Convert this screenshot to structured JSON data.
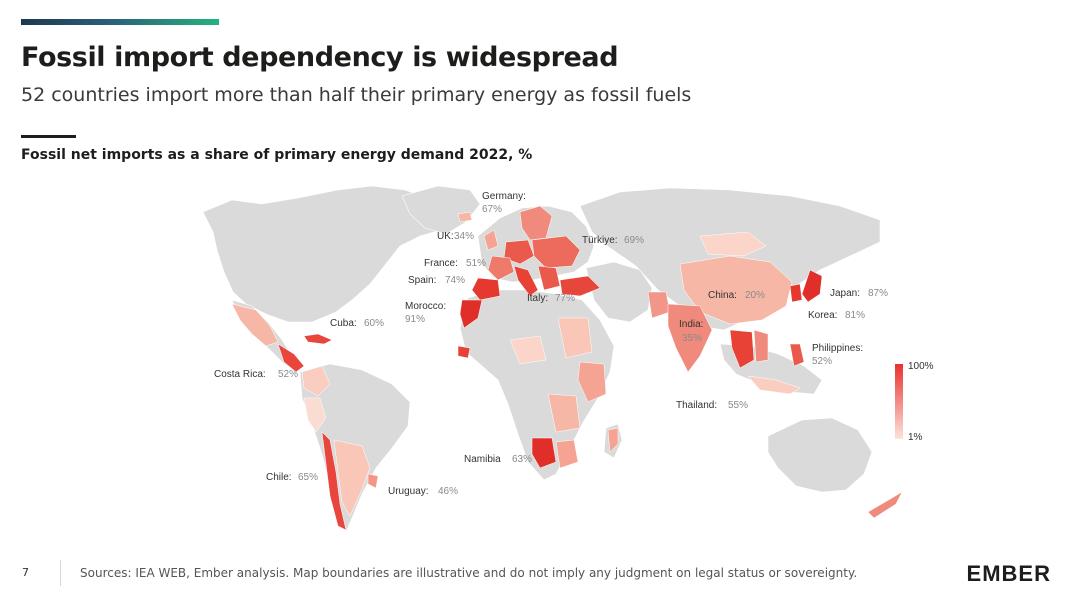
{
  "header": {
    "title": "Fossil import dependency is widespread",
    "subtitle": "52 countries import more than half their primary energy as fossil fuels",
    "chart_title": "Fossil net imports as a share of primary energy demand 2022, %"
  },
  "colors": {
    "land": "#dadada",
    "scale_high": "#e8312f",
    "scale_low": "#fde3dc",
    "accent_bar_start": "#1f3850",
    "accent_bar_end": "#23b37f"
  },
  "legend": {
    "max_label": "100%",
    "min_label": "1%"
  },
  "map_data": {
    "countries": [
      {
        "name": "Germany:",
        "value": "67%"
      },
      {
        "name": "UK:",
        "value": "34%"
      },
      {
        "name": "France:",
        "value": "51%"
      },
      {
        "name": "Spain:",
        "value": "74%"
      },
      {
        "name": "Morocco:",
        "value": "91%"
      },
      {
        "name": "Italy:",
        "value": "77%"
      },
      {
        "name": "Türkiye:",
        "value": "69%"
      },
      {
        "name": "Cuba:",
        "value": "60%"
      },
      {
        "name": "Costa Rica:",
        "value": "52%"
      },
      {
        "name": "Chile:",
        "value": "65%"
      },
      {
        "name": "Uruguay:",
        "value": "46%"
      },
      {
        "name": "Namibia",
        "value": "63%"
      },
      {
        "name": "China:",
        "value": "20%"
      },
      {
        "name": "Japan:",
        "value": "87%"
      },
      {
        "name": "Korea:",
        "value": "81%"
      },
      {
        "name": "India:",
        "value": "35%"
      },
      {
        "name": "Philippines:",
        "value": "52%"
      },
      {
        "name": "Thailand:",
        "value": "55%"
      }
    ]
  },
  "footer": {
    "page_number": "7",
    "sources": "Sources: IEA WEB, Ember analysis. Map boundaries are illustrative and do not imply any judgment on legal status or sovereignty.",
    "logo": "EMBER"
  }
}
